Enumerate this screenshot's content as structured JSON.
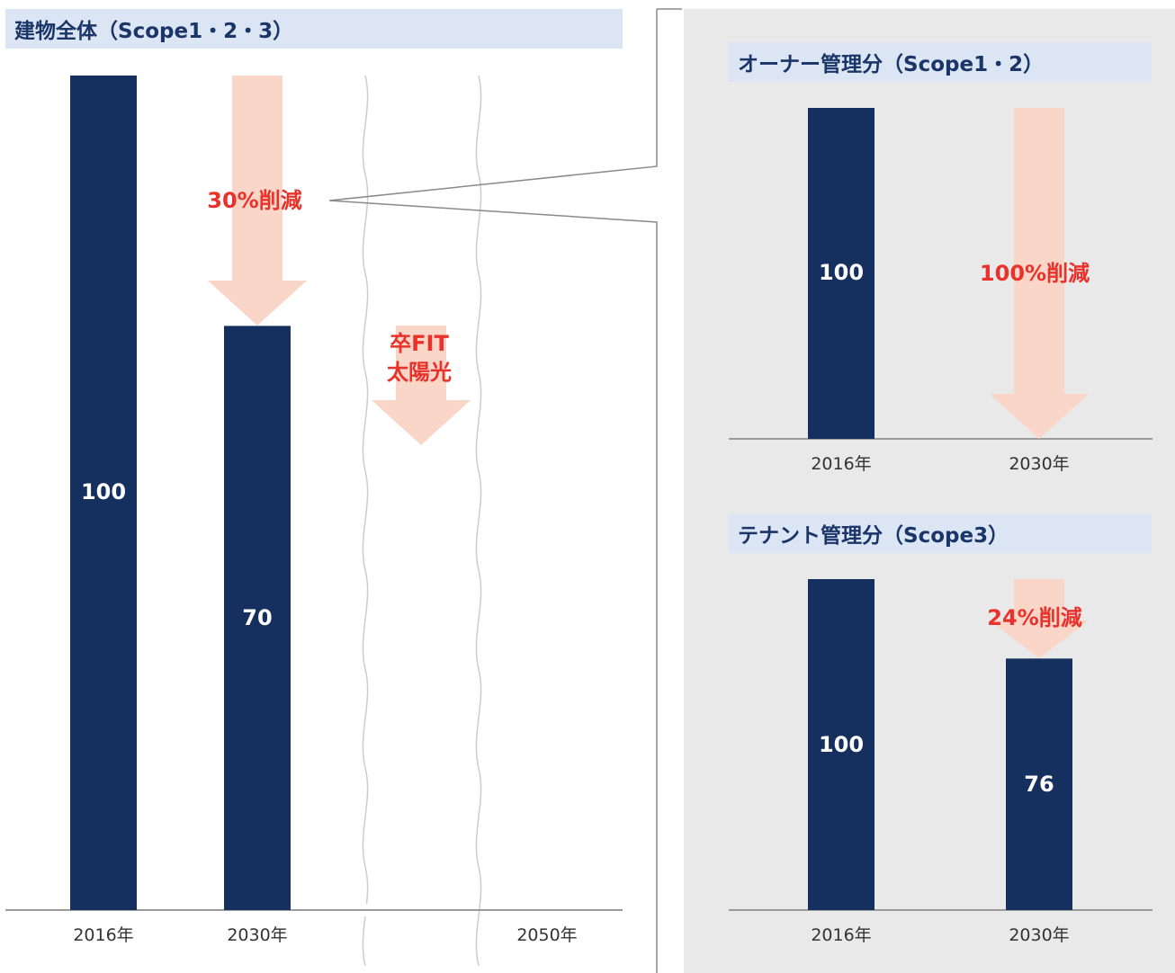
{
  "colors": {
    "bar": "#15305e",
    "arrow": "#f9d6c8",
    "reduction_text": "#e8322b",
    "bar_label": "#ffffff",
    "header_bg": "#dce5f3",
    "header_text": "#1a3568",
    "panel_bg": "#e9e9e9",
    "axis": "#9a9a9a"
  },
  "headers": {
    "main": "建物全体（Scope1・2・3）",
    "owner": "オーナー管理分（Scope1・2）",
    "tenant": "テナント管理分（Scope3）"
  },
  "chart_data": [
    {
      "type": "bar",
      "title": "建物全体（Scope1・2・3）",
      "categories": [
        "2016年",
        "2030年",
        "2050年"
      ],
      "values": [
        100,
        70,
        null
      ],
      "ylim": [
        0,
        100
      ],
      "grid": false,
      "annotations": [
        {
          "text": "30%削減",
          "target": "2030年"
        },
        {
          "text": "卒FIT\n太陽光",
          "target": "2050年"
        }
      ]
    },
    {
      "type": "bar",
      "title": "オーナー管理分（Scope1・2）",
      "categories": [
        "2016年",
        "2030年"
      ],
      "values": [
        100,
        0
      ],
      "ylim": [
        0,
        100
      ],
      "grid": false,
      "annotations": [
        {
          "text": "100%削減",
          "target": "2030年"
        }
      ]
    },
    {
      "type": "bar",
      "title": "テナント管理分（Scope3）",
      "categories": [
        "2016年",
        "2030年"
      ],
      "values": [
        100,
        76
      ],
      "ylim": [
        0,
        100
      ],
      "grid": false,
      "annotations": [
        {
          "text": "24%削減",
          "target": "2030年"
        }
      ]
    }
  ]
}
